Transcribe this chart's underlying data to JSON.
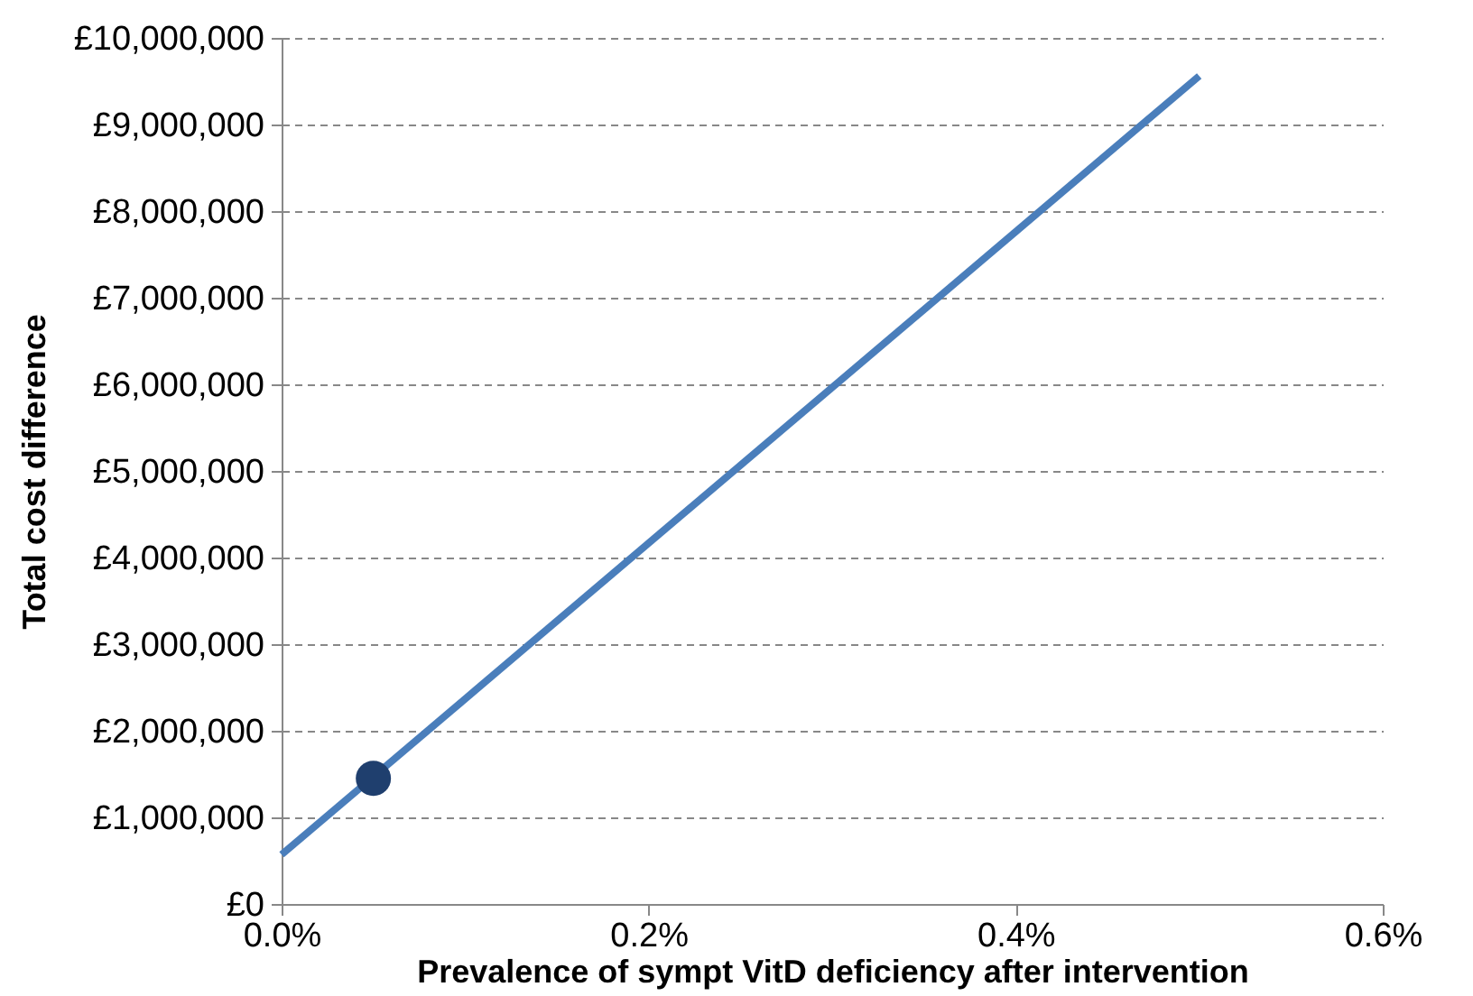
{
  "chart_data": {
    "type": "line",
    "xlabel": "Prevalence of sympt VitD deficiency after intervention",
    "ylabel": "Total cost difference",
    "xlim": [
      0,
      0.6
    ],
    "xticks": [
      {
        "value": 0,
        "label": "0.0%"
      },
      {
        "value": 0.2,
        "label": "0.2%"
      },
      {
        "value": 0.4,
        "label": "0.4%"
      },
      {
        "value": 0.6,
        "label": "0.6%"
      }
    ],
    "ylim": [
      0,
      10000000
    ],
    "yticks": [
      {
        "value": 0,
        "label": "£0"
      },
      {
        "value": 1000000,
        "label": "£1,000,000"
      },
      {
        "value": 2000000,
        "label": "£2,000,000"
      },
      {
        "value": 3000000,
        "label": "£3,000,000"
      },
      {
        "value": 4000000,
        "label": "£4,000,000"
      },
      {
        "value": 5000000,
        "label": "£5,000,000"
      },
      {
        "value": 6000000,
        "label": "£6,000,000"
      },
      {
        "value": 7000000,
        "label": "£7,000,000"
      },
      {
        "value": 8000000,
        "label": "£8,000,000"
      },
      {
        "value": 9000000,
        "label": "£9,000,000"
      },
      {
        "value": 10000000,
        "label": "£10,000,000"
      }
    ],
    "grid": "y",
    "series": [
      {
        "color": "#4a7ebb",
        "x": [
          0,
          0.5
        ],
        "values": [
          570000,
          9560000
        ]
      },
      {
        "type": "scatter",
        "marker": "circle",
        "color": "#1f3f6e",
        "x": [
          0.05
        ],
        "values": [
          1450000
        ]
      }
    ]
  }
}
